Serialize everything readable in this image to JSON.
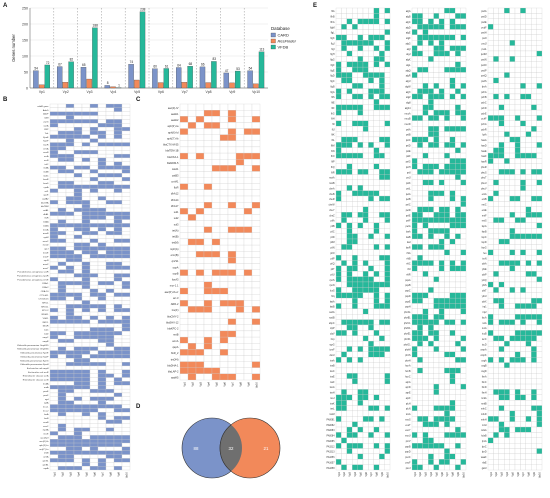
{
  "figure": {
    "panels": [
      {
        "letter": "A"
      },
      {
        "letter": "B"
      },
      {
        "letter": "C"
      },
      {
        "letter": "D"
      },
      {
        "letter": "E"
      }
    ]
  },
  "colors": {
    "card": "#7b93c9",
    "resfinder": "#f2895a",
    "vfdb": "#26b89a",
    "venn_overlap": "#6f6f6f",
    "grid": "#c9c9c9"
  },
  "chart_data": [
    {
      "panel": "A",
      "type": "bar",
      "ylabel": "Genes number",
      "categories": [
        "Vp1",
        "Vp2",
        "Vp3",
        "Vp4",
        "Vp5",
        "Vp6",
        "Vp7",
        "Vp8",
        "Vp9",
        "Vp10"
      ],
      "ylim": [
        0,
        250
      ],
      "yticks": [
        0,
        50,
        100,
        150,
        200,
        250
      ],
      "grid": true,
      "legend": {
        "title": "Database",
        "placement": "right"
      },
      "series": [
        {
          "name": "CARD",
          "values": [
            54,
            67,
            65,
            8,
            74,
            60,
            64,
            66,
            47,
            54
          ]
        },
        {
          "name": "ResFinder",
          "values": [
            10,
            18,
            28,
            4,
            25,
            17,
            18,
            17,
            16,
            13
          ]
        },
        {
          "name": "VFDB",
          "values": [
            72,
            82,
            188,
            1,
            238,
            61,
            68,
            83,
            53,
            113
          ]
        }
      ],
      "data_labels": {
        "CARD": [
          "54",
          "67",
          "65",
          "8",
          "74",
          "60",
          "64",
          "66",
          "47",
          "54"
        ],
        "VFDB": [
          "72",
          "82",
          "188",
          "1",
          "238",
          "61",
          "68",
          "83",
          "53",
          "113"
        ]
      }
    },
    {
      "panel": "B",
      "type": "heatmap",
      "rows": 95,
      "columns": [
        "Vp1",
        "Vp2",
        "Vp3",
        "Vp4",
        "Vp5",
        "Vp6",
        "Vp7",
        "Vp8",
        "Vp9",
        "Vp10"
      ],
      "row_labels": [
        "rsbA1 gene",
        "AdeG",
        "AdeF",
        "tetM",
        "vanG",
        "vanA",
        "CRP",
        "Ydc",
        "KpnE",
        "KpnF",
        "marR",
        "emrA",
        "emrB",
        "acrA",
        "acrB",
        "tolC",
        "mdtA",
        "mdtB",
        "mdtC",
        "baeR",
        "baeS",
        "cpxA",
        "sul1",
        "qacE",
        "aadA2",
        "blaOXA",
        "blaTEM",
        "catA1",
        "dfrA1",
        "floR",
        "tet(A)",
        "tet(B)",
        "mexA",
        "mexB",
        "oprM",
        "mexC",
        "mexD",
        "oprJ",
        "mexE",
        "mexF",
        "oprN",
        "mexX",
        "mexY",
        "Pseudomonas aeruginosa soxR",
        "Pseudomonas aeruginosa CpxR",
        "Pseudomonas aeruginosa emrE",
        "OXA-1",
        "OXA-2",
        "OXA-10",
        "CTX-M-1",
        "CTX-M-15",
        "SHV-1",
        "SHV-11",
        "KPC-2",
        "NDM-1",
        "VIM-1",
        "IMP-1",
        "MexR",
        "nalC",
        "nalD",
        "ampC",
        "ampR",
        "Klebsiella pneumoniae OmpK35",
        "Klebsiella pneumoniae OmpK36",
        "Klebsiella pneumoniae KpnE",
        "Klebsiella pneumoniae KpnF",
        "Klebsiella pneumoniae KpnG",
        "Klebsiella pneumoniae KpnH",
        "Escherichia coli ampH",
        "Escherichia coli acrR",
        "Enterobacter cloacae acrA",
        "Enterobacter cloacae acrB",
        "msbA",
        "arnA",
        "pmrE",
        "pmrF",
        "ugd",
        "eptA",
        "mcr-1",
        "mcr-2",
        "fosA",
        "fosB",
        "ermB",
        "ermC",
        "mphA",
        "msrE",
        "aac(3)-II",
        "aac(6')-Ib",
        "aph(3')-Ia",
        "ant(2'')-Ia",
        "rmtB",
        "armA",
        "qnrS1",
        "qnrB1",
        "oqxA"
      ]
    },
    {
      "panel": "C",
      "type": "heatmap",
      "rows": 45,
      "columns": [
        "Vp1",
        "Vp2",
        "Vp3",
        "Vp4",
        "Vp5",
        "Vp6",
        "Vp7",
        "Vp8",
        "Vp9",
        "Vp10"
      ],
      "row_labels": [
        "aac(3)-IV",
        "aadA1",
        "aadA2",
        "aph(3')-Ia",
        "aph(6)-Id",
        "aph(3'')-Ib",
        "blaCTX-M-55",
        "blaTEM-1B",
        "blaOXA-1",
        "blaNDM-5",
        "catA1",
        "catB3",
        "cmlA1",
        "floR",
        "dfrA12",
        "dfrA14",
        "dfrA17",
        "sul1",
        "sul2",
        "sul3",
        "tet(A)",
        "tet(B)",
        "tet(M)",
        "mph(A)",
        "erm(B)",
        "qnrS1",
        "oqxA",
        "oqxB",
        "fosA3",
        "mcr-1.1",
        "aac(6')-Ib-cr",
        "arr-3",
        "ARR-2",
        "lnu(F)",
        "blaCMY-2",
        "blaSHV-12",
        "blaKPC-2",
        "rmtB",
        "armA",
        "qepA",
        "floR_2",
        "tet(X4)",
        "blaDHA-1",
        "blaLAP-2",
        "aadA5"
      ]
    },
    {
      "panel": "D",
      "type": "venn",
      "sets": [
        "CARD",
        "ResFinder"
      ],
      "regions": {
        "CARD_only": 88,
        "intersection": 32,
        "ResFinder_only": 21
      },
      "labels": [
        "88",
        "32",
        "21"
      ]
    },
    {
      "panel": "E",
      "type": "heatmap",
      "blocks": 3,
      "rows_per_block": 86,
      "columns": [
        "Vp1",
        "Vp2",
        "Vp3",
        "Vp4",
        "Vp5",
        "Vp6",
        "Vp7",
        "Vp8",
        "Vp9",
        "Vp10"
      ],
      "row_labels": [
        [
          "fliA",
          "flhB",
          "flhA",
          "flgM",
          "flgL",
          "flgK",
          "flgJ",
          "flgI",
          "flgH",
          "flgG",
          "flgF",
          "flgE",
          "flgD",
          "flgC",
          "flgB",
          "flgA",
          "fliS",
          "fliE",
          "fliF",
          "fliG",
          "fliH",
          "fliI",
          "fliJ",
          "fliK",
          "fliL",
          "fliM",
          "fliN",
          "fliO",
          "fliP",
          "fliQ",
          "fliR",
          "motA",
          "motB",
          "cheA",
          "cheB",
          "cheR",
          "cheW",
          "cheY",
          "cheZ",
          "pilA",
          "pilB",
          "pilC",
          "pilD",
          "pilM",
          "pilN",
          "pilO",
          "pilP",
          "pilQ",
          "pilT",
          "pilU",
          "rpoS",
          "rpoN",
          "luxS",
          "hfq",
          "katA",
          "katB",
          "sodA",
          "sodB",
          "ahpC",
          "clpP",
          "clpV",
          "hcp",
          "vgrG",
          "icmF",
          "dotU",
          "tssA",
          "tssB",
          "tssC",
          "tssE",
          "tssF",
          "tssG",
          "tssH",
          "tssJ",
          "tssK",
          "tssL",
          "tssM",
          "PA0081",
          "PA0082",
          "PA0083",
          "PA0084",
          "PA0085",
          "PA1512",
          "PA1513",
          "PA1656",
          "PA1657",
          "PA1658"
        ],
        [
          "algA",
          "algB",
          "algC",
          "algD",
          "algE",
          "algF",
          "algG",
          "algI",
          "algJ",
          "algK",
          "algL",
          "algQ",
          "algR",
          "algU",
          "algW",
          "algX",
          "algZ",
          "alg8",
          "alg44",
          "mucA",
          "mucB",
          "mucD",
          "pslA",
          "pslB",
          "pslC",
          "pslD",
          "pslE",
          "pslF",
          "pslG",
          "pslH",
          "pslI",
          "pslJ",
          "pslK",
          "pslL",
          "pelA",
          "pelB",
          "pelC",
          "pelD",
          "pelE",
          "pelF",
          "pelG",
          "lasA",
          "lasB",
          "lasI",
          "lasR",
          "rhlA",
          "rhlB",
          "rhlC",
          "rhlI",
          "rhlR",
          "pqsA",
          "pqsB",
          "pqsC",
          "pqsD",
          "pqsE",
          "pqsH",
          "phzA1",
          "phzB1",
          "phzC1",
          "phzD1",
          "phzE1",
          "phzF1",
          "phzG1",
          "phzM",
          "phzS",
          "phzH",
          "hcnA",
          "hcnB",
          "hcnC",
          "aprA",
          "aprD",
          "aprE",
          "aprF",
          "plcH",
          "plcN",
          "toxA",
          "exoS",
          "exoT",
          "exoY",
          "exoU",
          "pcrV",
          "popB",
          "popD",
          "pscC",
          "pscF",
          "pscJ"
        ],
        [
          "pvdA",
          "pvdD",
          "pvdE",
          "pvdF",
          "pvdH",
          "pvdI",
          "pvdJ",
          "pvdL",
          "pvdM",
          "pvdN",
          "pvdO",
          "pvdP",
          "pvdQ",
          "pvdS",
          "fpvA",
          "pchA",
          "pchB",
          "pchC",
          "pchD",
          "pchE",
          "pchF",
          "pchG",
          "pchR",
          "fptA",
          "hasA",
          "hasD",
          "hasE",
          "hasF",
          "hasR",
          "phuR",
          "phuS",
          "phuT",
          "phuU",
          "phuV",
          "entA",
          "entB",
          "entC",
          "entE",
          "entF",
          "entS",
          "fepA",
          "fepB",
          "fepC",
          "fepD",
          "fepG",
          "fes",
          "iroN",
          "ybtA",
          "ybtE",
          "ybtP",
          "ybtQ",
          "ybtS",
          "ybtT",
          "ybtU",
          "ybtX",
          "irp1",
          "irp2",
          "fyuA",
          "iutA",
          "iucA",
          "iucB",
          "iucC",
          "iucD",
          "ompA",
          "ompK",
          "csgA",
          "csgB",
          "csgD",
          "fimA",
          "fimC",
          "fimD",
          "fimH",
          "mrkA",
          "mrkB",
          "mrkC",
          "mrkD",
          "mrkH",
          "mrkI",
          "kdsA",
          "kdsB",
          "lpxA",
          "lpxC",
          "lpxD",
          "waaF",
          "rfaE",
          "galU"
        ]
      ]
    }
  ]
}
